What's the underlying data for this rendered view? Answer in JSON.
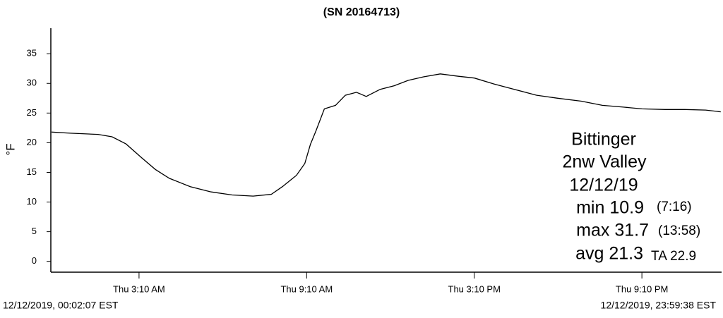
{
  "chart_data": {
    "type": "line",
    "title": "(SN 20164713)",
    "y_label": "°F",
    "x": [
      0.035,
      0.7,
      1.7,
      2.2,
      2.7,
      3.25,
      3.75,
      4.25,
      5.0,
      5.75,
      6.5,
      7.25,
      7.9,
      8.3,
      8.8,
      9.1,
      9.3,
      9.5,
      9.8,
      10.2,
      10.55,
      10.95,
      11.3,
      11.8,
      12.3,
      12.8,
      13.35,
      13.95,
      14.6,
      15.17,
      15.87,
      16.6,
      17.4,
      18.15,
      19.0,
      19.75,
      20.5,
      21.17,
      22.0,
      22.7,
      23.45,
      23.99
    ],
    "values": [
      21.8,
      21.6,
      21.4,
      21.0,
      19.8,
      17.5,
      15.5,
      14.0,
      12.6,
      11.7,
      11.2,
      11.0,
      11.3,
      12.6,
      14.5,
      16.5,
      19.7,
      22.0,
      25.7,
      26.3,
      28.0,
      28.5,
      27.8,
      29.0,
      29.6,
      30.5,
      31.1,
      31.6,
      31.2,
      30.9,
      29.9,
      29.0,
      28.0,
      27.5,
      27.0,
      26.3,
      26.0,
      25.7,
      25.6,
      25.6,
      25.5,
      25.2
    ],
    "color": "#000000",
    "xlim": [
      0.035,
      23.994
    ],
    "xticks": [
      {
        "value": 3.1667,
        "label": "Thu 3:10 AM"
      },
      {
        "value": 9.1667,
        "label": "Thu 9:10 AM"
      },
      {
        "value": 15.1667,
        "label": "Thu 3:10 PM"
      },
      {
        "value": 21.1667,
        "label": "Thu 9:10 PM"
      }
    ],
    "ylim": [
      -1.7,
      39.3
    ],
    "yticks": [
      0,
      5,
      10,
      15,
      20,
      25,
      30,
      35
    ],
    "start_label": "12/12/2019, 00:02:07 EST",
    "end_label": "12/12/2019, 23:59:38 EST",
    "annotation": {
      "station": "Bittinger",
      "site": "2nw Valley",
      "date": "12/12/19",
      "min": "min 10.9",
      "min_time": "(7:16)",
      "max": "max 31.7",
      "max_time": "(13:58)",
      "avg": "avg 21.3",
      "ta": "TA 22.9"
    }
  }
}
